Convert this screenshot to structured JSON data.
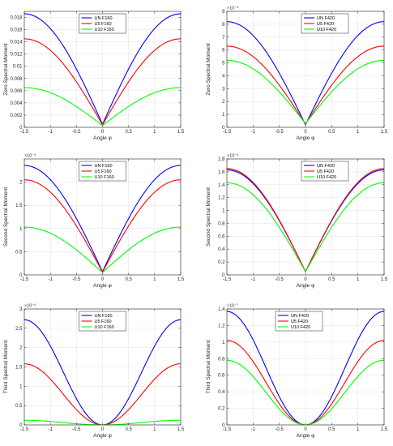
{
  "chart_data": [
    {
      "type": "line",
      "ylabel": "Zero Spectral Moment",
      "xlabel": "Angle φ",
      "exponent": "",
      "xlim": [
        -1.5,
        1.5
      ],
      "ylim": [
        0,
        0.019
      ],
      "xticks": [
        -1.5,
        -1,
        -0.5,
        0,
        0.5,
        1,
        1.5
      ],
      "xtick_labels": [
        "-1.5",
        "-1",
        "-0.5",
        "0",
        "0.5",
        "1",
        "1.5"
      ],
      "yticks": [
        0,
        0.002,
        0.004,
        0.006,
        0.008,
        0.01,
        0.012,
        0.014,
        0.016,
        0.018
      ],
      "ytick_labels": [
        "0",
        "0.002",
        "0.004",
        "0.006",
        "0.008",
        "0.01",
        "0.012",
        "0.014",
        "0.016",
        "0.018"
      ],
      "grid": true,
      "legend_position": "top-center",
      "series": [
        {
          "name": "UN F160",
          "color": "#0000ff",
          "peak": 0.0186,
          "min": 0.0005,
          "shape": "linear"
        },
        {
          "name": "U5 F160",
          "color": "#ff0000",
          "peak": 0.0145,
          "min": 0.0004,
          "shape": "linear"
        },
        {
          "name": "U10 F160",
          "color": "#00ff00",
          "peak": 0.0065,
          "min": 0.0003,
          "shape": "linear"
        }
      ]
    },
    {
      "type": "line",
      "ylabel": "Zero Spectral Moment",
      "xlabel": "Angle φ",
      "exponent": "×10⁻³",
      "xlim": [
        -1.5,
        1.5
      ],
      "ylim": [
        0,
        9
      ],
      "xticks": [
        -1.5,
        -1,
        -0.5,
        0,
        0.5,
        1,
        1.5
      ],
      "xtick_labels": [
        "-1.5",
        "-1",
        "-0.5",
        "0",
        "0.5",
        "1",
        "1.5"
      ],
      "yticks": [
        0,
        1,
        2,
        3,
        4,
        5,
        6,
        7,
        8,
        9
      ],
      "ytick_labels": [
        "0",
        "1",
        "2",
        "3",
        "4",
        "5",
        "6",
        "7",
        "8",
        "9"
      ],
      "grid": true,
      "legend_position": "top-right",
      "series": [
        {
          "name": "UN F420",
          "color": "#0000ff",
          "peak": 8.2,
          "min": 0.2,
          "shape": "linear"
        },
        {
          "name": "U5 F420",
          "color": "#ff0000",
          "peak": 6.3,
          "min": 0.25,
          "shape": "linear"
        },
        {
          "name": "U10 F420",
          "color": "#00ff00",
          "peak": 5.2,
          "min": 0.3,
          "shape": "linear"
        }
      ]
    },
    {
      "type": "line",
      "ylabel": "Second Spectral Moment",
      "xlabel": "Angle φ",
      "exponent": "×10⁻³",
      "xlim": [
        -1.5,
        1.5
      ],
      "ylim": [
        0,
        2.5
      ],
      "xticks": [
        -1.5,
        -1,
        -0.5,
        0,
        0.5,
        1,
        1.5
      ],
      "xtick_labels": [
        "-1.5",
        "-1",
        "-0.5",
        "0",
        "0.5",
        "1",
        "1.5"
      ],
      "yticks": [
        0,
        0.5,
        1,
        1.5,
        2
      ],
      "ytick_labels": [
        "0",
        "0.5",
        "1",
        "1.5",
        "2"
      ],
      "grid": true,
      "legend_position": "top-center",
      "series": [
        {
          "name": "UN F160",
          "color": "#0000ff",
          "peak": 2.36,
          "min": 0.07,
          "shape": "linear"
        },
        {
          "name": "U5 F160",
          "color": "#ff0000",
          "peak": 2.05,
          "min": 0.06,
          "shape": "linear"
        },
        {
          "name": "U10 F160",
          "color": "#00ff00",
          "peak": 1.03,
          "min": 0.05,
          "shape": "linear"
        }
      ]
    },
    {
      "type": "line",
      "ylabel": "Second Spectral Moment",
      "xlabel": "Angle φ",
      "exponent": "×10⁻³",
      "xlim": [
        -1.5,
        1.5
      ],
      "ylim": [
        0,
        1.8
      ],
      "xticks": [
        -1.5,
        -1,
        -0.5,
        0,
        0.5,
        1,
        1.5
      ],
      "xtick_labels": [
        "-1.5",
        "-1",
        "-0.5",
        "0",
        "0.5",
        "1",
        "1.5"
      ],
      "yticks": [
        0,
        0.2,
        0.4,
        0.6,
        0.8,
        1,
        1.2,
        1.4,
        1.6,
        1.8
      ],
      "ytick_labels": [
        "0",
        "0.2",
        "0.4",
        "0.6",
        "0.8",
        "1",
        "1.2",
        "1.4",
        "1.6",
        "1.8"
      ],
      "grid": true,
      "legend_position": "top-right",
      "series": [
        {
          "name": "UN F420",
          "color": "#0000ff",
          "peak": 1.63,
          "min": 0.05,
          "shape": "linear"
        },
        {
          "name": "U5 F420",
          "color": "#ff0000",
          "peak": 1.65,
          "min": 0.05,
          "shape": "linear"
        },
        {
          "name": "U10 F420",
          "color": "#00ff00",
          "peak": 1.43,
          "min": 0.05,
          "shape": "linear"
        }
      ]
    },
    {
      "type": "line",
      "ylabel": "Third Spectral Moment",
      "xlabel": "Angle φ",
      "exponent": "×10⁻⁶",
      "xlim": [
        -1.5,
        1.5
      ],
      "ylim": [
        0,
        3
      ],
      "xticks": [
        -1.5,
        -1,
        -0.5,
        0,
        0.5,
        1,
        1.5
      ],
      "xtick_labels": [
        "-1.5",
        "-1",
        "-0.5",
        "0",
        "0.5",
        "1",
        "1.5"
      ],
      "yticks": [
        0,
        0.5,
        1,
        1.5,
        2,
        2.5,
        3
      ],
      "ytick_labels": [
        "0",
        "0.5",
        "1",
        "1.5",
        "2",
        "2.5",
        "3"
      ],
      "grid": true,
      "legend_position": "top-center",
      "series": [
        {
          "name": "UN F160",
          "color": "#0000ff",
          "peak": 2.72,
          "min": 0.0,
          "shape": "smooth"
        },
        {
          "name": "U5 F160",
          "color": "#ff0000",
          "peak": 1.58,
          "min": 0.0,
          "shape": "smooth"
        },
        {
          "name": "U10 F160",
          "color": "#00ff00",
          "peak": 0.12,
          "min": 0.0,
          "shape": "smooth"
        }
      ]
    },
    {
      "type": "line",
      "ylabel": "Third Spectral Moment",
      "xlabel": "Angle φ",
      "exponent": "×10⁻⁷",
      "xlim": [
        -1.5,
        1.5
      ],
      "ylim": [
        0,
        1.4
      ],
      "xticks": [
        -1.5,
        -1,
        -0.5,
        0,
        0.5,
        1,
        1.5
      ],
      "xtick_labels": [
        "-1.5",
        "-1",
        "-0.5",
        "0",
        "0.5",
        "1",
        "1.5"
      ],
      "yticks": [
        0,
        0.2,
        0.4,
        0.6,
        0.8,
        1,
        1.2,
        1.4
      ],
      "ytick_labels": [
        "0",
        "0.2",
        "0.4",
        "0.6",
        "0.8",
        "1",
        "1.2",
        "1.4"
      ],
      "grid": true,
      "legend_position": "top-left",
      "series": [
        {
          "name": "UN F420",
          "color": "#0000ff",
          "peak": 1.37,
          "min": 0.0,
          "shape": "smooth"
        },
        {
          "name": "U5 F420",
          "color": "#ff0000",
          "peak": 1.02,
          "min": 0.0,
          "shape": "smooth"
        },
        {
          "name": "U10 F420",
          "color": "#00ff00",
          "peak": 0.78,
          "min": 0.0,
          "shape": "smooth"
        }
      ]
    }
  ]
}
